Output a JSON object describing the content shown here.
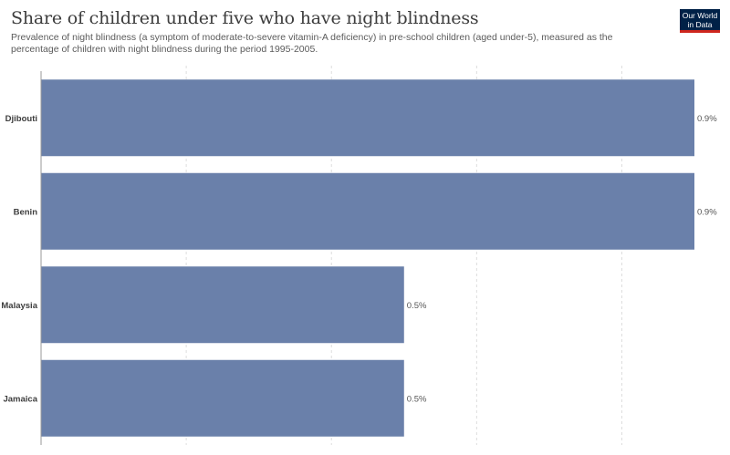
{
  "header": {
    "title": "Share of children under five who have night blindness",
    "subtitle": "Prevalence of night blindness (a symptom of moderate-to-severe vitamin-A deficiency) in pre-school children (aged under-5), measured as the percentage of children with night blindness during the period 1995-2005.",
    "logo_line1": "Our World",
    "logo_line2": "in Data"
  },
  "colors": {
    "bar": "#6a80aa",
    "grid": "#dddddd",
    "axis": "#999999",
    "logo_bg": "#002147",
    "logo_accent": "#ce261e"
  },
  "chart_data": {
    "type": "bar",
    "orientation": "horizontal",
    "title": "Share of children under five who have night blindness",
    "categories": [
      "Djibouti",
      "Benin",
      "Malaysia",
      "Jamaica"
    ],
    "values": [
      0.9,
      0.9,
      0.5,
      0.5
    ],
    "value_labels": [
      "0.9%",
      "0.9%",
      "0.5%",
      "0.5%"
    ],
    "unit": "%",
    "xlim": [
      0,
      0.9
    ],
    "grid": true
  }
}
